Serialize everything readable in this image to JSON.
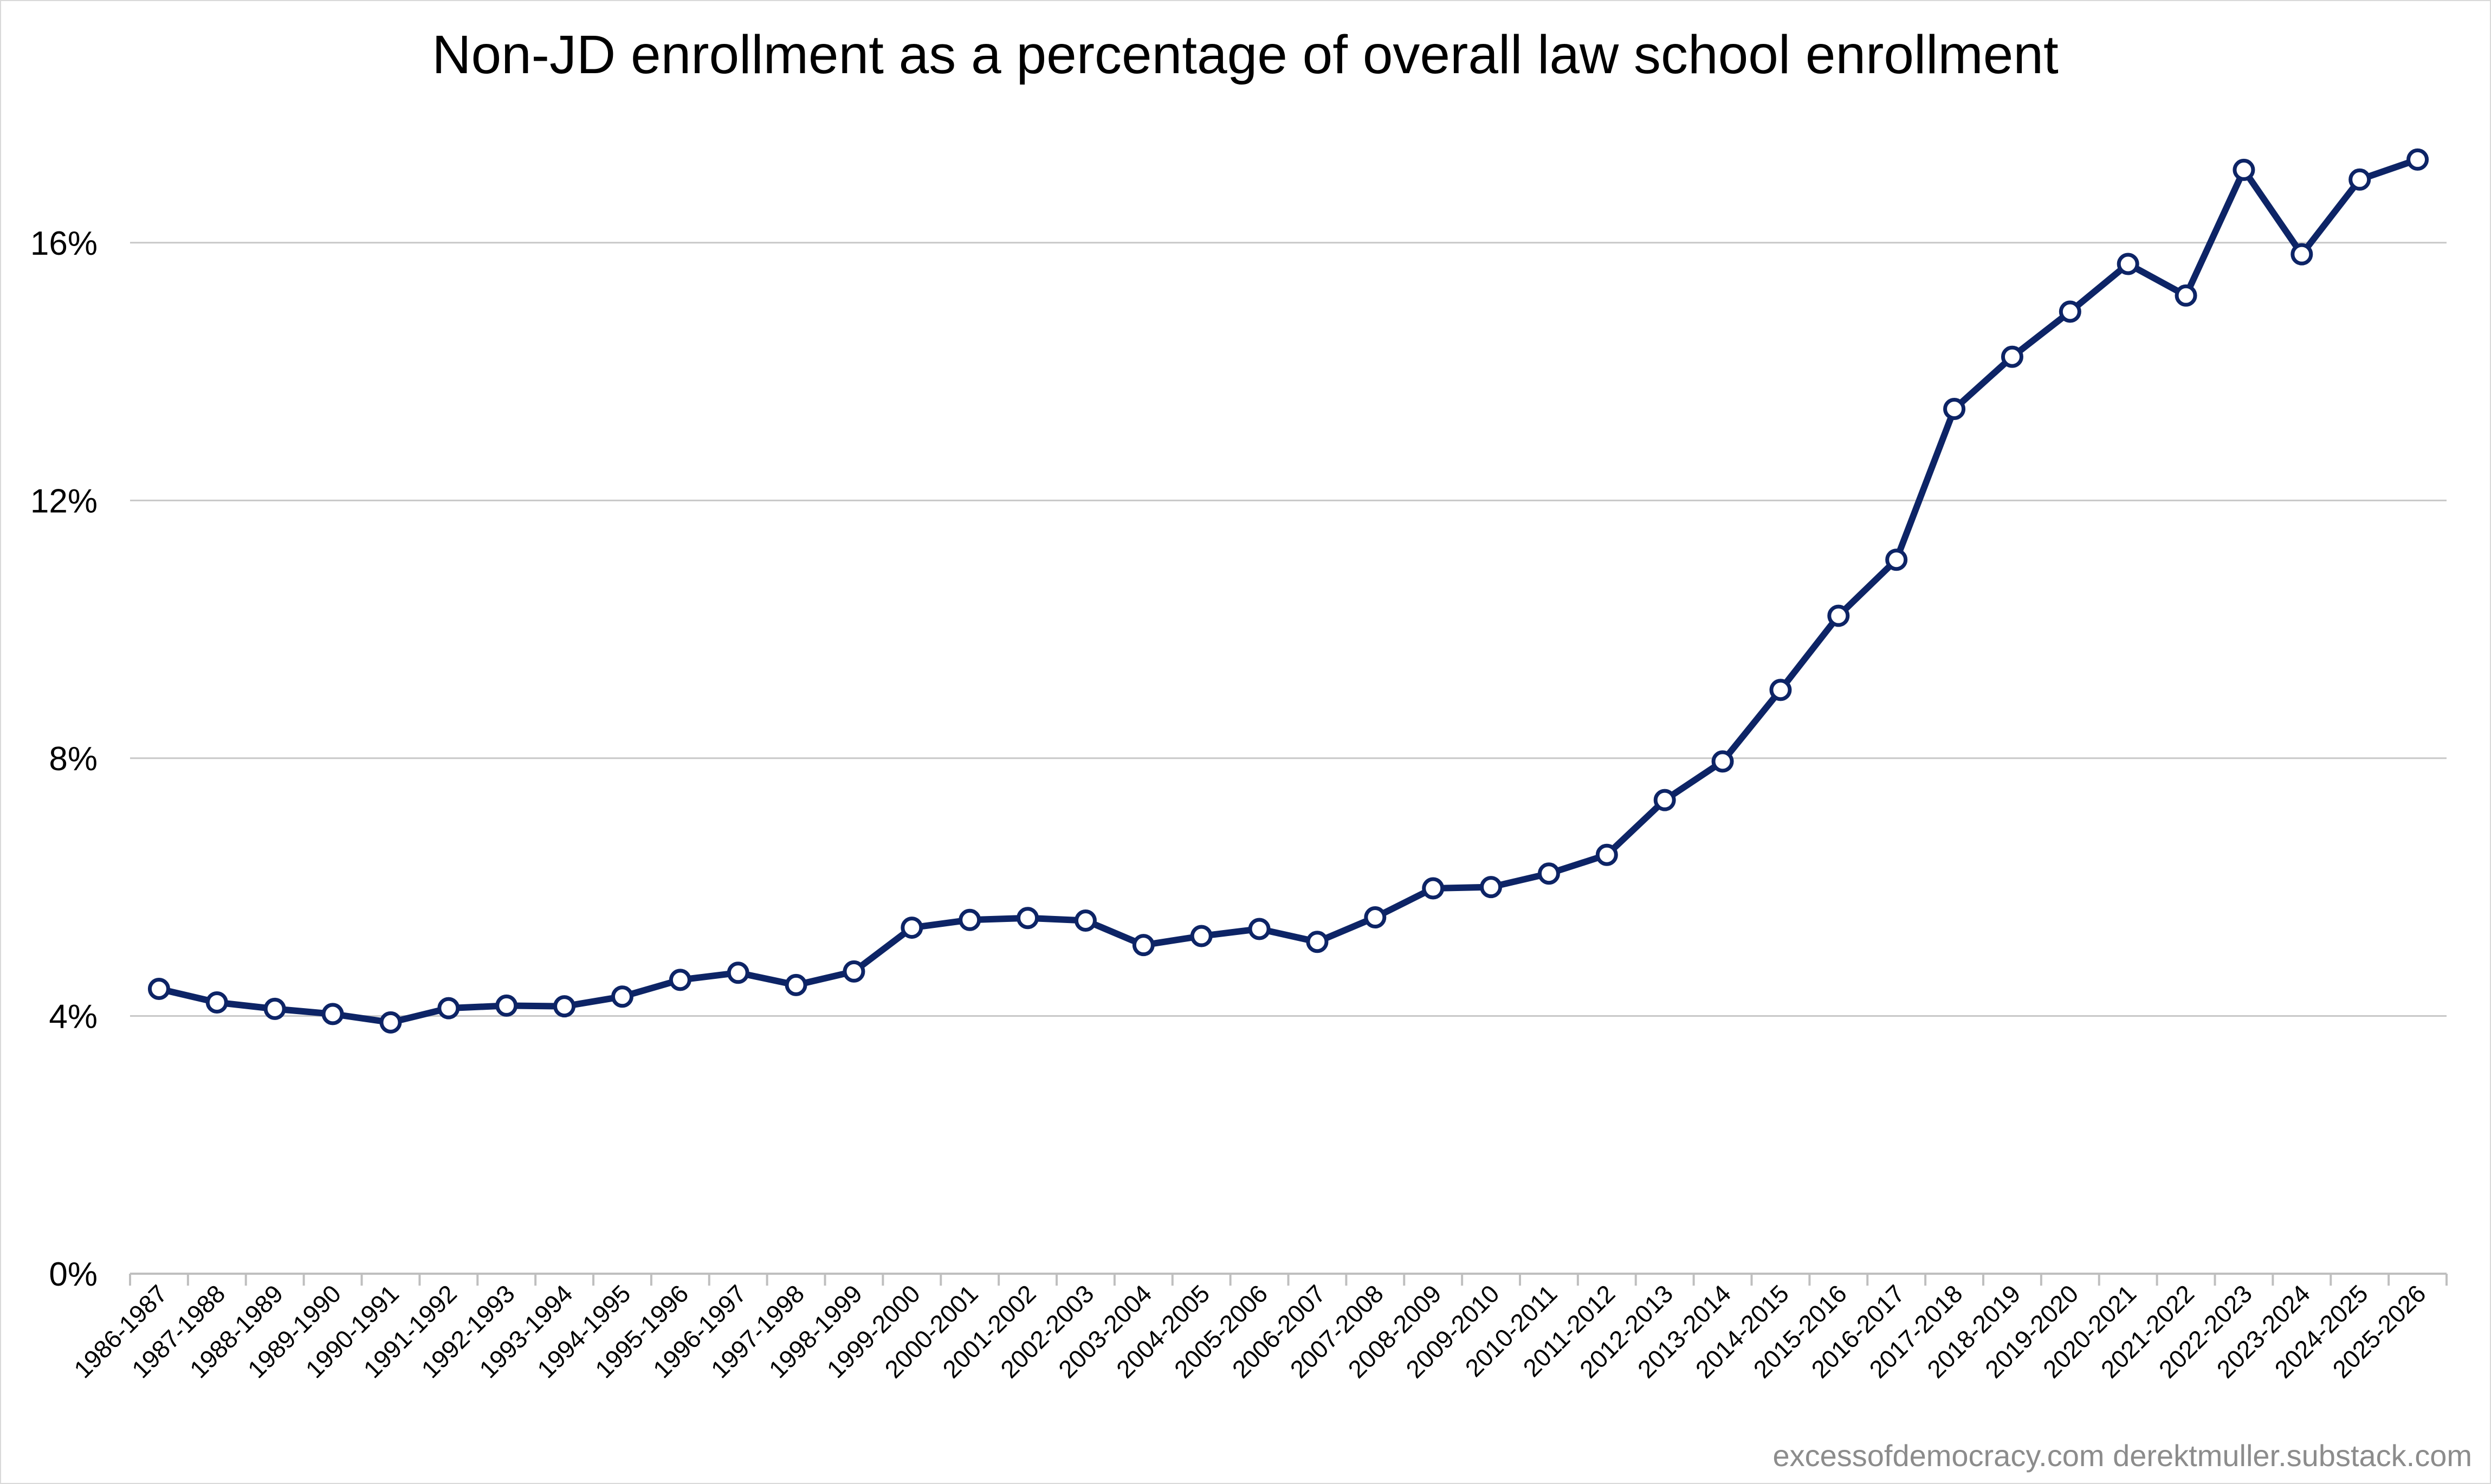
{
  "chart_data": {
    "type": "line",
    "title": "Non-JD enrollment as a percentage of overall law school enrollment",
    "xlabel": "",
    "ylabel": "",
    "ylim": [
      0,
      18
    ],
    "y_ticks": [
      0,
      4,
      8,
      12,
      16
    ],
    "y_tick_labels": [
      "0%",
      "4%",
      "8%",
      "12%",
      "16%"
    ],
    "grid": true,
    "legend": "none",
    "categories": [
      "1986-1987",
      "1987-1988",
      "1988-1989",
      "1989-1990",
      "1990-1991",
      "1991-1992",
      "1992-1993",
      "1993-1994",
      "1994-1995",
      "1995-1996",
      "1996-1997",
      "1997-1998",
      "1998-1999",
      "1999-2000",
      "2000-2001",
      "2001-2002",
      "2002-2003",
      "2003-2004",
      "2004-2005",
      "2005-2006",
      "2006-2007",
      "2007-2008",
      "2008-2009",
      "2009-2010",
      "2010-2011",
      "2011-2012",
      "2012-2013",
      "2013-2014",
      "2014-2015",
      "2015-2016",
      "2016-2017",
      "2017-2018",
      "2018-2019",
      "2019-2020",
      "2020-2021",
      "2021-2022",
      "2022-2023",
      "2023-2024",
      "2024-2025",
      "2025-2026"
    ],
    "series": [
      {
        "values": [
          4.42,
          4.21,
          4.11,
          4.03,
          3.9,
          4.12,
          4.16,
          4.15,
          4.3,
          4.56,
          4.67,
          4.48,
          4.69,
          5.37,
          5.49,
          5.52,
          5.48,
          5.1,
          5.24,
          5.35,
          5.15,
          5.53,
          5.98,
          6.0,
          6.21,
          6.5,
          7.35,
          7.95,
          9.06,
          10.21,
          11.08,
          13.42,
          14.23,
          14.93,
          15.67,
          15.18,
          17.13,
          15.82,
          16.98,
          17.29
        ],
        "color": "#0d2466"
      }
    ],
    "colors": {
      "line": "#0d2466",
      "marker_fill": "#ffffff",
      "gridline": "#c8c8c8",
      "axis": "#bfbfbf",
      "credit": "#8c8c8c"
    }
  },
  "credit": "excessofdemocracy.com  derektmuller.substack.com"
}
